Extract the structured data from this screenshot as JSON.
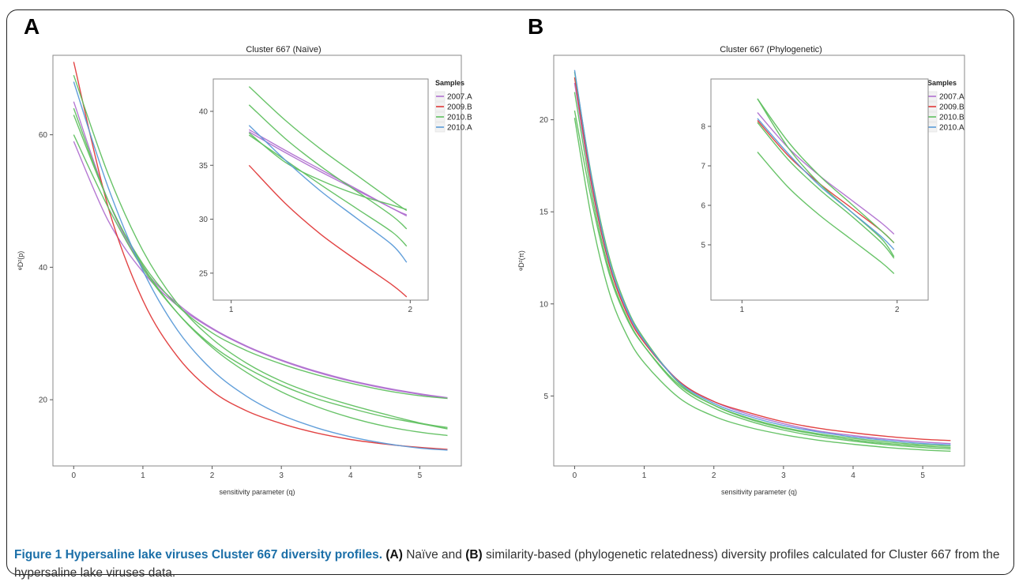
{
  "figure": {
    "panel_a_letter": "A",
    "panel_b_letter": "B",
    "caption_heading": "Figure 1 Hypersaline lake viruses Cluster 667 diversity profiles.",
    "caption_a_tag": "(A)",
    "caption_text_1": " Naïve and ",
    "caption_b_tag": "(B)",
    "caption_text_2": " similarity-based (phylogenetic relatedness) diversity profiles calculated for Cluster 667 from the hypersaline lake viruses data."
  },
  "legend": {
    "title": "Samples",
    "entries": [
      {
        "label": "2007.A",
        "color": "#b070d0"
      },
      {
        "label": "2009.B",
        "color": "#e03a3a"
      },
      {
        "label": "2010.B",
        "color": "#60c060"
      },
      {
        "label": "2010.A",
        "color": "#5a9ad8"
      }
    ]
  },
  "chart_data": [
    {
      "id": "A",
      "type": "line",
      "title": "Cluster 667 (Naïve)",
      "xlabel": "sensitivity parameter (q)",
      "ylabel": "ᵠD²(p)",
      "xlim": [
        -0.3,
        5.6
      ],
      "ylim": [
        10,
        72
      ],
      "xticks": [
        0,
        1,
        2,
        3,
        4,
        5
      ],
      "yticks": [
        20,
        40,
        60
      ],
      "grid": false,
      "series": [
        {
          "sample": "2007.A",
          "color": "#b070d0",
          "x": [
            0,
            0.5,
            1,
            1.5,
            2,
            2.5,
            3,
            3.5,
            4,
            4.5,
            5,
            5.4
          ],
          "y": [
            65,
            50,
            40,
            34.5,
            30.8,
            28.1,
            26,
            24.3,
            22.9,
            21.8,
            20.9,
            20.3
          ]
        },
        {
          "sample": "2007.A",
          "color": "#b070d0",
          "x": [
            0,
            0.5,
            1,
            1.5,
            2,
            2.5,
            3,
            3.5,
            4,
            4.5,
            5,
            5.4
          ],
          "y": [
            59,
            47,
            39.3,
            34.2,
            30.7,
            28,
            25.9,
            24.2,
            22.8,
            21.7,
            20.8,
            20.2
          ]
        },
        {
          "sample": "2009.B",
          "color": "#e03a3a",
          "x": [
            0,
            0.5,
            1,
            1.5,
            2,
            2.5,
            3,
            3.5,
            4,
            4.5,
            5,
            5.4
          ],
          "y": [
            71,
            49,
            35,
            26.5,
            21.3,
            18.3,
            16.4,
            15,
            14,
            13.3,
            12.8,
            12.5
          ]
        },
        {
          "sample": "2010.B",
          "color": "#60c060",
          "x": [
            0,
            0.5,
            1,
            1.5,
            2,
            2.5,
            3,
            3.5,
            4,
            4.5,
            5,
            5.4
          ],
          "y": [
            69,
            54,
            42.5,
            34.5,
            29.2,
            25.5,
            22.8,
            20.8,
            19.2,
            17.8,
            16.5,
            15.8
          ]
        },
        {
          "sample": "2010.B",
          "color": "#60c060",
          "x": [
            0,
            0.5,
            1,
            1.5,
            2,
            2.5,
            3,
            3.5,
            4,
            4.5,
            5,
            5.4
          ],
          "y": [
            64,
            50,
            40.5,
            34.2,
            30.1,
            27.4,
            25.4,
            23.8,
            22.5,
            21.4,
            20.6,
            20.2
          ]
        },
        {
          "sample": "2010.B",
          "color": "#60c060",
          "x": [
            0,
            0.5,
            1,
            1.5,
            2,
            2.5,
            3,
            3.5,
            4,
            4.5,
            5,
            5.4
          ],
          "y": [
            60,
            49,
            39.8,
            33.1,
            28.2,
            24.8,
            22.2,
            20.2,
            18.7,
            17.4,
            16.4,
            15.6
          ]
        },
        {
          "sample": "2010.B",
          "color": "#60c060",
          "x": [
            0,
            0.5,
            1,
            1.5,
            2,
            2.5,
            3,
            3.5,
            4,
            4.5,
            5,
            5.4
          ],
          "y": [
            63,
            50,
            40.2,
            33.1,
            27.9,
            24.1,
            21.2,
            19,
            17.3,
            16,
            15.1,
            14.6
          ]
        },
        {
          "sample": "2010.A",
          "color": "#5a9ad8",
          "x": [
            0,
            0.5,
            1,
            1.5,
            2,
            2.5,
            3,
            3.5,
            4,
            4.5,
            5,
            5.4
          ],
          "y": [
            68,
            52,
            39.5,
            30.5,
            24.5,
            20.5,
            17.7,
            15.8,
            14.4,
            13.4,
            12.7,
            12.4
          ]
        }
      ]
    },
    {
      "id": "A-inset",
      "type": "line",
      "xlim": [
        0.9,
        2.1
      ],
      "ylim": [
        22.5,
        43
      ],
      "xticks": [
        1,
        2
      ],
      "yticks": [
        25,
        30,
        35,
        40
      ],
      "grid": false,
      "series": [
        {
          "sample": "2007.A",
          "color": "#b070d0",
          "x": [
            1.1,
            1.3,
            1.5,
            1.7,
            1.9,
            1.98
          ],
          "y": [
            38.3,
            36.4,
            34.6,
            32.8,
            31,
            30.4
          ]
        },
        {
          "sample": "2007.A",
          "color": "#b070d0",
          "x": [
            1.1,
            1.3,
            1.5,
            1.7,
            1.9,
            1.98
          ],
          "y": [
            38.1,
            36.2,
            34.4,
            32.7,
            31,
            30.3
          ]
        },
        {
          "sample": "2009.B",
          "color": "#e03a3a",
          "x": [
            1.1,
            1.3,
            1.5,
            1.7,
            1.9,
            1.98
          ],
          "y": [
            35,
            31.5,
            28.6,
            26.2,
            23.9,
            22.8
          ]
        },
        {
          "sample": "2010.B",
          "color": "#60c060",
          "x": [
            1.1,
            1.3,
            1.5,
            1.7,
            1.9,
            1.98
          ],
          "y": [
            42.3,
            39.2,
            36.5,
            34.1,
            31.7,
            30.8
          ]
        },
        {
          "sample": "2010.B",
          "color": "#60c060",
          "x": [
            1.1,
            1.3,
            1.5,
            1.7,
            1.9,
            1.98
          ],
          "y": [
            40.6,
            37.5,
            34.9,
            32.6,
            30.3,
            29.1
          ]
        },
        {
          "sample": "2010.B",
          "color": "#60c060",
          "x": [
            1.1,
            1.3,
            1.5,
            1.7,
            1.9,
            1.98
          ],
          "y": [
            38,
            35.3,
            33.6,
            32.3,
            31.3,
            30.9
          ]
        },
        {
          "sample": "2010.B",
          "color": "#60c060",
          "x": [
            1.1,
            1.3,
            1.5,
            1.7,
            1.9,
            1.98
          ],
          "y": [
            37.8,
            35.5,
            33.2,
            31,
            28.8,
            27.5
          ]
        },
        {
          "sample": "2010.A",
          "color": "#5a9ad8",
          "x": [
            1.1,
            1.3,
            1.5,
            1.7,
            1.9,
            1.98
          ],
          "y": [
            38.7,
            35.5,
            32.6,
            30.1,
            27.6,
            26
          ]
        }
      ]
    },
    {
      "id": "B",
      "type": "line",
      "title": "Cluster 667 (Phylogenetic)",
      "xlabel": "sensitivity parameter (q)",
      "ylabel": "ᵠD²(π)",
      "xlim": [
        -0.3,
        5.6
      ],
      "ylim": [
        1.2,
        23.5
      ],
      "xticks": [
        0,
        1,
        2,
        3,
        4,
        5
      ],
      "yticks": [
        5,
        10,
        15,
        20
      ],
      "grid": false,
      "series": [
        {
          "sample": "2007.A",
          "color": "#b070d0",
          "x": [
            0,
            0.25,
            0.5,
            0.75,
            1,
            1.5,
            2,
            2.5,
            3,
            3.5,
            4,
            4.5,
            5,
            5.4
          ],
          "y": [
            22,
            16.3,
            12.1,
            9.6,
            8,
            5.8,
            4.7,
            4,
            3.5,
            3.1,
            2.85,
            2.65,
            2.5,
            2.42
          ]
        },
        {
          "sample": "2009.B",
          "color": "#e03a3a",
          "x": [
            0,
            0.25,
            0.5,
            0.75,
            1,
            1.5,
            2,
            2.5,
            3,
            3.5,
            4,
            4.5,
            5,
            5.4
          ],
          "y": [
            22.3,
            16.4,
            12.1,
            9.5,
            7.9,
            5.8,
            4.7,
            4.1,
            3.6,
            3.25,
            3,
            2.8,
            2.65,
            2.58
          ]
        },
        {
          "sample": "2010.B",
          "color": "#60c060",
          "x": [
            0,
            0.25,
            0.5,
            0.75,
            1,
            1.5,
            2,
            2.5,
            3,
            3.5,
            4,
            4.5,
            5,
            5.4
          ],
          "y": [
            20.5,
            15.5,
            11.6,
            9.2,
            7.7,
            5.6,
            4.5,
            3.8,
            3.3,
            2.95,
            2.7,
            2.5,
            2.35,
            2.28
          ]
        },
        {
          "sample": "2010.B",
          "color": "#60c060",
          "x": [
            0,
            0.25,
            0.5,
            0.75,
            1,
            1.5,
            2,
            2.5,
            3,
            3.5,
            4,
            4.5,
            5,
            5.4
          ],
          "y": [
            20.1,
            14.5,
            10.6,
            8.3,
            6.8,
            4.9,
            3.9,
            3.3,
            2.9,
            2.6,
            2.38,
            2.2,
            2.07,
            2
          ]
        },
        {
          "sample": "2010.B",
          "color": "#60c060",
          "x": [
            0,
            0.25,
            0.5,
            0.75,
            1,
            1.5,
            2,
            2.5,
            3,
            3.5,
            4,
            4.5,
            5,
            5.4
          ],
          "y": [
            22.6,
            16.8,
            12.5,
            9.8,
            8.1,
            5.7,
            4.5,
            3.75,
            3.25,
            2.9,
            2.62,
            2.42,
            2.28,
            2.2
          ]
        },
        {
          "sample": "2010.B",
          "color": "#60c060",
          "x": [
            0,
            0.25,
            0.5,
            0.75,
            1,
            1.5,
            2,
            2.5,
            3,
            3.5,
            4,
            4.5,
            5,
            5.4
          ],
          "y": [
            21.5,
            15.9,
            11.8,
            9.3,
            7.7,
            5.5,
            4.35,
            3.65,
            3.15,
            2.8,
            2.55,
            2.35,
            2.2,
            2.12
          ]
        },
        {
          "sample": "2010.A",
          "color": "#5a9ad8",
          "x": [
            0,
            0.25,
            0.5,
            0.75,
            1,
            1.5,
            2,
            2.5,
            3,
            3.5,
            4,
            4.5,
            5,
            5.4
          ],
          "y": [
            22.7,
            16.7,
            12.3,
            9.7,
            8,
            5.75,
            4.6,
            3.9,
            3.4,
            3.05,
            2.78,
            2.58,
            2.42,
            2.35
          ]
        }
      ]
    },
    {
      "id": "B-inset",
      "type": "line",
      "xlim": [
        0.8,
        2.2
      ],
      "ylim": [
        3.6,
        9.2
      ],
      "xticks": [
        1,
        2
      ],
      "yticks": [
        5,
        6,
        7,
        8
      ],
      "grid": false,
      "series": [
        {
          "sample": "2007.A",
          "color": "#b070d0",
          "x": [
            1.1,
            1.3,
            1.5,
            1.7,
            1.9,
            1.98
          ],
          "y": [
            8.35,
            7.45,
            6.75,
            6.15,
            5.55,
            5.27
          ]
        },
        {
          "sample": "2009.B",
          "color": "#e03a3a",
          "x": [
            1.1,
            1.3,
            1.5,
            1.7,
            1.9,
            1.98
          ],
          "y": [
            8.15,
            7.25,
            6.55,
            5.95,
            5.35,
            5.05
          ]
        },
        {
          "sample": "2010.B",
          "color": "#60c060",
          "x": [
            1.1,
            1.3,
            1.5,
            1.7,
            1.9,
            1.98
          ],
          "y": [
            7.35,
            6.45,
            5.75,
            5.15,
            4.55,
            4.27
          ]
        },
        {
          "sample": "2010.B",
          "color": "#60c060",
          "x": [
            1.1,
            1.3,
            1.5,
            1.7,
            1.9,
            1.98
          ],
          "y": [
            8.7,
            7.6,
            6.75,
            6.05,
            5.35,
            5.05
          ]
        },
        {
          "sample": "2010.B",
          "color": "#60c060",
          "x": [
            1.1,
            1.3,
            1.5,
            1.7,
            1.9,
            1.98
          ],
          "y": [
            8.7,
            7.45,
            6.55,
            5.85,
            5.15,
            4.7
          ]
        },
        {
          "sample": "2010.B",
          "color": "#60c060",
          "x": [
            1.1,
            1.3,
            1.5,
            1.7,
            1.9,
            1.98
          ],
          "y": [
            8.1,
            7.15,
            6.4,
            5.75,
            5.05,
            4.66
          ]
        },
        {
          "sample": "2010.A",
          "color": "#5a9ad8",
          "x": [
            1.1,
            1.3,
            1.5,
            1.7,
            1.9,
            1.98
          ],
          "y": [
            8.2,
            7.3,
            6.5,
            5.85,
            5.2,
            4.88
          ]
        }
      ]
    }
  ]
}
